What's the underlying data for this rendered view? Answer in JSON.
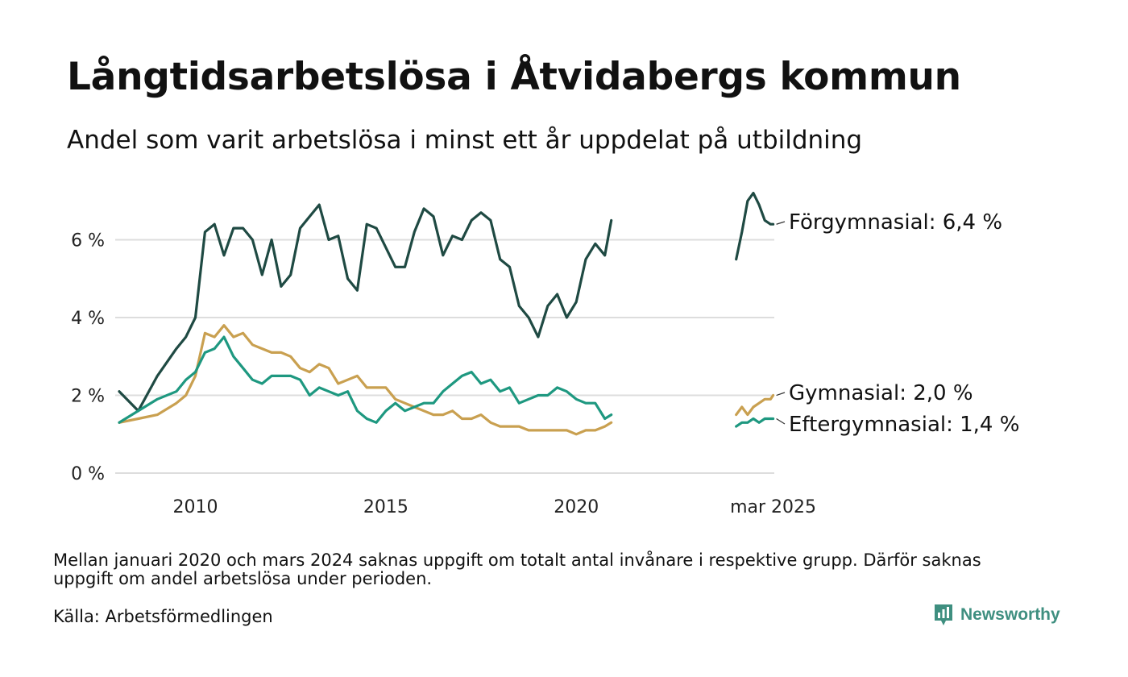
{
  "title": "Långtidsarbetslösa i Åtvidabergs kommun",
  "subtitle": "Andel som varit arbetslösa i minst ett år uppdelat på utbildning",
  "note": "Mellan januari 2020 och mars 2024 saknas uppgift om totalt antal invånare i respektive grupp. Därför saknas uppgift om andel arbetslösa under perioden.",
  "source": "Källa: Arbetsförmedlingen",
  "brand": {
    "name": "Newsworthy",
    "color": "#3f8f80"
  },
  "chart_data": {
    "type": "line",
    "title": "Långtidsarbetslösa i Åtvidabergs kommun",
    "subtitle": "Andel som varit arbetslösa i minst ett år uppdelat på utbildning",
    "xlabel": "",
    "ylabel": "",
    "xlim": [
      2008.0,
      2025.2
    ],
    "ylim": [
      0,
      7.4
    ],
    "y_ticks": [
      0,
      2,
      4,
      6
    ],
    "y_tick_labels": [
      "0 %",
      "2 %",
      "4 %",
      "6 %"
    ],
    "x_ticks": [
      2010,
      2015,
      2020,
      2025.17
    ],
    "x_tick_labels": [
      "2010",
      "2015",
      "2020",
      "mar 2025"
    ],
    "grid": "horizontal",
    "legend": "end-labels",
    "series": [
      {
        "name": "Förgymnasial",
        "end_label": "Förgymnasial: 6,4 %",
        "color": "#1f4a43",
        "segments": [
          {
            "x": [
              2008.0,
              2008.5,
              2009.0,
              2009.5,
              2009.75,
              2010.0,
              2010.25,
              2010.5,
              2010.75,
              2011.0,
              2011.25,
              2011.5,
              2011.75,
              2012.0,
              2012.25,
              2012.5,
              2012.75,
              2013.0,
              2013.25,
              2013.5,
              2013.75,
              2014.0,
              2014.25,
              2014.5,
              2014.75,
              2015.0,
              2015.25,
              2015.5,
              2015.75,
              2016.0,
              2016.25,
              2016.5,
              2016.75,
              2017.0,
              2017.25,
              2017.5,
              2017.75,
              2018.0,
              2018.25,
              2018.5,
              2018.75,
              2019.0,
              2019.25,
              2019.5,
              2019.75,
              2020.0,
              2020.25,
              2020.5,
              2020.75,
              2020.92
            ],
            "y": [
              2.1,
              1.6,
              2.5,
              3.2,
              3.5,
              4.0,
              6.2,
              6.4,
              5.6,
              6.3,
              6.3,
              6.0,
              5.1,
              6.0,
              4.8,
              5.1,
              6.3,
              6.6,
              6.9,
              6.0,
              6.1,
              5.0,
              4.7,
              6.4,
              6.3,
              5.8,
              5.3,
              5.3,
              6.2,
              6.8,
              6.6,
              5.6,
              6.1,
              6.0,
              6.5,
              6.7,
              6.5,
              5.5,
              5.3,
              4.3,
              4.0,
              3.5,
              4.3,
              4.6,
              4.0,
              4.4,
              5.5,
              5.9,
              5.6,
              6.5
            ]
          },
          {
            "x": [
              2024.2,
              2024.35,
              2024.5,
              2024.65,
              2024.8,
              2024.95,
              2025.1,
              2025.17
            ],
            "y": [
              5.5,
              6.2,
              7.0,
              7.2,
              6.9,
              6.5,
              6.4,
              6.4
            ]
          }
        ]
      },
      {
        "name": "Gymnasial",
        "end_label": "Gymnasial: 2,0 %",
        "color": "#c9a050",
        "segments": [
          {
            "x": [
              2008.0,
              2008.5,
              2009.0,
              2009.5,
              2009.75,
              2010.0,
              2010.25,
              2010.5,
              2010.75,
              2011.0,
              2011.25,
              2011.5,
              2011.75,
              2012.0,
              2012.25,
              2012.5,
              2012.75,
              2013.0,
              2013.25,
              2013.5,
              2013.75,
              2014.0,
              2014.25,
              2014.5,
              2014.75,
              2015.0,
              2015.25,
              2015.5,
              2015.75,
              2016.0,
              2016.25,
              2016.5,
              2016.75,
              2017.0,
              2017.25,
              2017.5,
              2017.75,
              2018.0,
              2018.25,
              2018.5,
              2018.75,
              2019.0,
              2019.25,
              2019.5,
              2019.75,
              2020.0,
              2020.25,
              2020.5,
              2020.75,
              2020.92
            ],
            "y": [
              1.3,
              1.4,
              1.5,
              1.8,
              2.0,
              2.5,
              3.6,
              3.5,
              3.8,
              3.5,
              3.6,
              3.3,
              3.2,
              3.1,
              3.1,
              3.0,
              2.7,
              2.6,
              2.8,
              2.7,
              2.3,
              2.4,
              2.5,
              2.2,
              2.2,
              2.2,
              1.9,
              1.8,
              1.7,
              1.6,
              1.5,
              1.5,
              1.6,
              1.4,
              1.4,
              1.5,
              1.3,
              1.2,
              1.2,
              1.2,
              1.1,
              1.1,
              1.1,
              1.1,
              1.1,
              1.0,
              1.1,
              1.1,
              1.2,
              1.3
            ]
          },
          {
            "x": [
              2024.2,
              2024.35,
              2024.5,
              2024.65,
              2024.8,
              2024.95,
              2025.1,
              2025.17
            ],
            "y": [
              1.5,
              1.7,
              1.5,
              1.7,
              1.8,
              1.9,
              1.9,
              2.0
            ]
          }
        ]
      },
      {
        "name": "Eftergymnasial",
        "end_label": "Eftergymnasial: 1,4 %",
        "color": "#1e9880",
        "segments": [
          {
            "x": [
              2008.0,
              2008.5,
              2009.0,
              2009.5,
              2009.75,
              2010.0,
              2010.25,
              2010.5,
              2010.75,
              2011.0,
              2011.25,
              2011.5,
              2011.75,
              2012.0,
              2012.25,
              2012.5,
              2012.75,
              2013.0,
              2013.25,
              2013.5,
              2013.75,
              2014.0,
              2014.25,
              2014.5,
              2014.75,
              2015.0,
              2015.25,
              2015.5,
              2015.75,
              2016.0,
              2016.25,
              2016.5,
              2016.75,
              2017.0,
              2017.25,
              2017.5,
              2017.75,
              2018.0,
              2018.25,
              2018.5,
              2018.75,
              2019.0,
              2019.25,
              2019.5,
              2019.75,
              2020.0,
              2020.25,
              2020.5,
              2020.75,
              2020.92
            ],
            "y": [
              1.3,
              1.6,
              1.9,
              2.1,
              2.4,
              2.6,
              3.1,
              3.2,
              3.5,
              3.0,
              2.7,
              2.4,
              2.3,
              2.5,
              2.5,
              2.5,
              2.4,
              2.0,
              2.2,
              2.1,
              2.0,
              2.1,
              1.6,
              1.4,
              1.3,
              1.6,
              1.8,
              1.6,
              1.7,
              1.8,
              1.8,
              2.1,
              2.3,
              2.5,
              2.6,
              2.3,
              2.4,
              2.1,
              2.2,
              1.8,
              1.9,
              2.0,
              2.0,
              2.2,
              2.1,
              1.9,
              1.8,
              1.8,
              1.4,
              1.5
            ]
          },
          {
            "x": [
              2024.2,
              2024.35,
              2024.5,
              2024.65,
              2024.8,
              2024.95,
              2025.1,
              2025.17
            ],
            "y": [
              1.2,
              1.3,
              1.3,
              1.4,
              1.3,
              1.4,
              1.4,
              1.4
            ]
          }
        ]
      }
    ]
  }
}
